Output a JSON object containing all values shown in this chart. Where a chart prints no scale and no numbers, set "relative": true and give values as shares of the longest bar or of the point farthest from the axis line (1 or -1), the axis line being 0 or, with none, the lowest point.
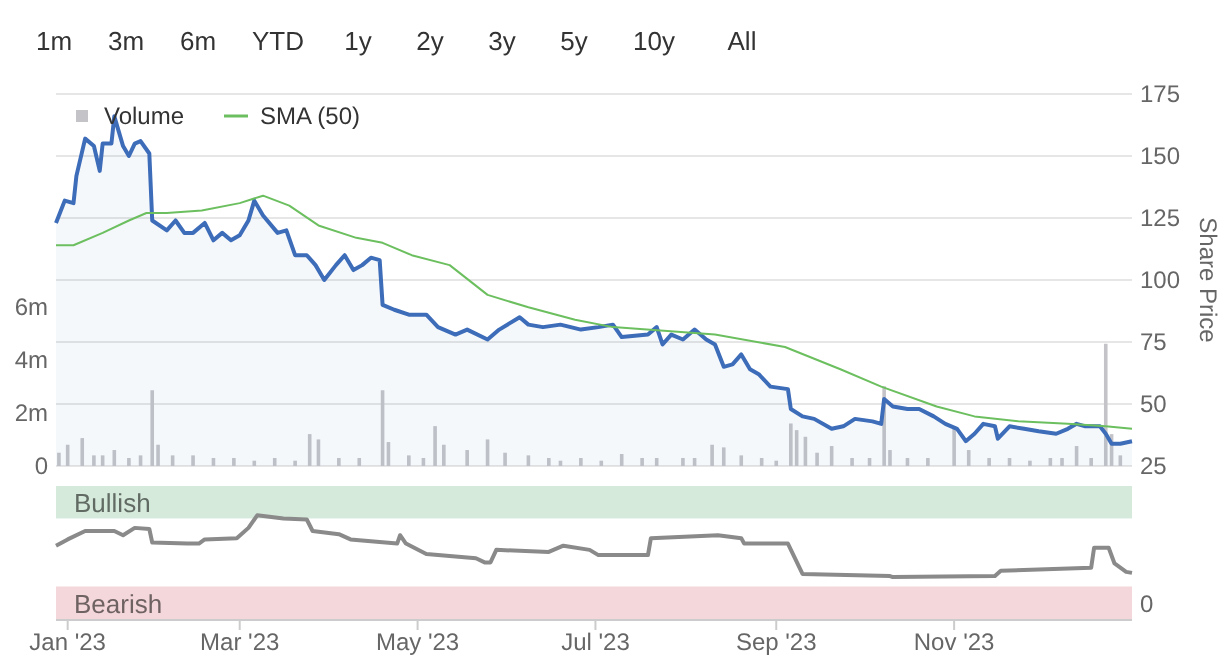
{
  "chart_data": [
    {
      "type": "other",
      "annotations": [
        "1m",
        "3m",
        "6m",
        "YTD",
        "1y",
        "2y",
        "3y",
        "5y",
        "10y",
        "All"
      ]
    },
    {
      "type": "line",
      "ylabel": "Share Price",
      "xlim": [
        "2022-12-28",
        "2024-01-01"
      ],
      "ylim": [
        25,
        175
      ],
      "yticks": [
        25,
        50,
        75,
        100,
        125,
        150,
        175
      ],
      "y2lim": [
        0,
        14000000
      ],
      "y2ticks": [
        {
          "value": 0,
          "label": "0"
        },
        {
          "value": 2000000,
          "label": "2m"
        },
        {
          "value": 4000000,
          "label": "4m"
        },
        {
          "value": 6000000,
          "label": "6m"
        }
      ],
      "grid": "y",
      "legend": "top left",
      "tick_labels": "y",
      "series": [
        {
          "name": "Volume",
          "type": "bar",
          "axis": "y2",
          "color": "#c4c4c8",
          "x": [
            "2022-12-29",
            "2023-01-01",
            "2023-01-06",
            "2023-01-10",
            "2023-01-13",
            "2023-01-17",
            "2023-01-22",
            "2023-01-26",
            "2023-01-30",
            "2023-02-01",
            "2023-02-06",
            "2023-02-13",
            "2023-02-20",
            "2023-02-27",
            "2023-03-06",
            "2023-03-13",
            "2023-03-20",
            "2023-03-25",
            "2023-03-28",
            "2023-04-04",
            "2023-04-11",
            "2023-04-19",
            "2023-04-21",
            "2023-04-28",
            "2023-05-03",
            "2023-05-07",
            "2023-05-10",
            "2023-05-18",
            "2023-05-25",
            "2023-05-31",
            "2023-06-08",
            "2023-06-15",
            "2023-06-19",
            "2023-06-26",
            "2023-07-03",
            "2023-07-10",
            "2023-07-17",
            "2023-07-22",
            "2023-07-31",
            "2023-08-04",
            "2023-08-10",
            "2023-08-14",
            "2023-08-20",
            "2023-08-27",
            "2023-09-01",
            "2023-09-06",
            "2023-09-08",
            "2023-09-11",
            "2023-09-15",
            "2023-09-20",
            "2023-09-27",
            "2023-10-03",
            "2023-10-08",
            "2023-10-10",
            "2023-10-16",
            "2023-10-23",
            "2023-11-01",
            "2023-11-06",
            "2023-11-13",
            "2023-11-20",
            "2023-11-27",
            "2023-12-04",
            "2023-12-08",
            "2023-12-13",
            "2023-12-18",
            "2023-12-23",
            "2023-12-25",
            "2023-12-28"
          ],
          "values": [
            500000,
            800000,
            1050000,
            400000,
            400000,
            600000,
            300000,
            400000,
            2850000,
            800000,
            400000,
            400000,
            300000,
            300000,
            200000,
            300000,
            200000,
            1200000,
            1000000,
            300000,
            300000,
            2850000,
            900000,
            400000,
            300000,
            1500000,
            800000,
            600000,
            1000000,
            500000,
            400000,
            300000,
            200000,
            300000,
            200000,
            450000,
            300000,
            300000,
            300000,
            300000,
            800000,
            700000,
            400000,
            300000,
            200000,
            1600000,
            1350000,
            1100000,
            500000,
            750000,
            300000,
            300000,
            3000000,
            600000,
            300000,
            300000,
            1500000,
            600000,
            300000,
            300000,
            200000,
            300000,
            300000,
            750000,
            300000,
            4600000,
            1200000,
            400000
          ]
        },
        {
          "type": "area",
          "color": "#3d6cb9",
          "x": [
            "2022-12-28",
            "2022-12-31",
            "2023-01-03",
            "2023-01-04",
            "2023-01-07",
            "2023-01-10",
            "2023-01-12",
            "2023-01-13",
            "2023-01-16",
            "2023-01-17",
            "2023-01-20",
            "2023-01-22",
            "2023-01-24",
            "2023-01-26",
            "2023-01-29",
            "2023-01-30",
            "2023-02-04",
            "2023-02-07",
            "2023-02-10",
            "2023-02-13",
            "2023-02-17",
            "2023-02-20",
            "2023-02-23",
            "2023-02-26",
            "2023-03-01",
            "2023-03-04",
            "2023-03-06",
            "2023-03-09",
            "2023-03-14",
            "2023-03-17",
            "2023-03-20",
            "2023-03-24",
            "2023-03-27",
            "2023-03-30",
            "2023-04-03",
            "2023-04-06",
            "2023-04-09",
            "2023-04-12",
            "2023-04-15",
            "2023-04-18",
            "2023-04-19",
            "2023-04-23",
            "2023-04-28",
            "2023-05-04",
            "2023-05-08",
            "2023-05-14",
            "2023-05-18",
            "2023-05-25",
            "2023-05-29",
            "2023-06-05",
            "2023-06-08",
            "2023-06-13",
            "2023-06-19",
            "2023-06-26",
            "2023-07-02",
            "2023-07-07",
            "2023-07-10",
            "2023-07-19",
            "2023-07-22",
            "2023-07-24",
            "2023-07-27",
            "2023-07-31",
            "2023-08-04",
            "2023-08-08",
            "2023-08-11",
            "2023-08-14",
            "2023-08-17",
            "2023-08-20",
            "2023-08-23",
            "2023-08-26",
            "2023-08-30",
            "2023-09-05",
            "2023-09-06",
            "2023-09-10",
            "2023-09-14",
            "2023-09-20",
            "2023-09-24",
            "2023-09-28",
            "2023-10-04",
            "2023-10-07",
            "2023-10-08",
            "2023-10-11",
            "2023-10-16",
            "2023-10-20",
            "2023-10-25",
            "2023-10-29",
            "2023-11-02",
            "2023-11-05",
            "2023-11-08",
            "2023-11-11",
            "2023-11-15",
            "2023-11-16",
            "2023-11-20",
            "2023-11-25",
            "2023-11-30",
            "2023-12-06",
            "2023-12-10",
            "2023-12-13",
            "2023-12-16",
            "2023-12-21",
            "2023-12-23",
            "2023-12-25",
            "2023-12-28",
            "2024-01-01"
          ],
          "values": [
            123,
            132,
            131,
            142,
            157,
            154,
            144,
            155,
            155,
            166,
            154,
            150,
            155,
            156,
            151,
            124,
            120,
            124,
            119,
            119,
            123,
            116,
            119,
            116,
            118,
            124,
            132,
            126,
            119,
            120,
            110,
            110,
            106,
            100,
            106,
            110,
            104,
            106,
            109,
            108,
            90,
            88,
            86,
            86,
            81,
            78,
            80,
            76,
            80,
            85,
            82,
            81,
            82,
            80,
            81,
            82,
            77,
            78,
            81,
            74,
            78,
            76,
            80,
            76,
            74,
            65,
            66,
            70,
            64,
            62,
            57,
            56,
            48,
            45,
            44,
            40,
            41,
            44,
            43,
            42,
            52,
            49,
            48,
            48,
            45,
            42,
            40,
            35,
            38,
            42,
            41,
            36,
            41,
            40,
            39,
            38,
            40,
            42,
            41,
            41,
            38,
            34,
            34,
            35
          ]
        },
        {
          "name": "SMA (50)",
          "type": "line",
          "color": "#6cbf5f",
          "x": [
            "2022-12-28",
            "2023-01-03",
            "2023-01-13",
            "2023-01-22",
            "2023-01-28",
            "2023-02-04",
            "2023-02-16",
            "2023-03-01",
            "2023-03-09",
            "2023-03-18",
            "2023-03-28",
            "2023-04-10",
            "2023-04-19",
            "2023-04-29",
            "2023-05-12",
            "2023-05-25",
            "2023-06-08",
            "2023-06-24",
            "2023-07-07",
            "2023-08-11",
            "2023-09-04",
            "2023-09-23",
            "2023-10-07",
            "2023-10-26",
            "2023-11-08",
            "2023-11-23",
            "2023-12-10",
            "2023-12-23",
            "2024-01-01"
          ],
          "values": [
            114,
            114,
            119,
            124,
            127,
            127,
            128,
            131,
            134,
            130,
            122,
            117,
            115,
            110,
            106,
            94,
            89,
            84,
            81,
            78,
            73,
            64,
            57,
            49,
            45,
            43,
            42,
            41,
            40
          ]
        }
      ]
    },
    {
      "type": "line",
      "relative": true,
      "xlim": [
        "2022-12-28",
        "2024-01-01"
      ],
      "xticks": [
        {
          "value": "2023-01-01",
          "label": "Jan '23"
        },
        {
          "value": "2023-03-01",
          "label": "Mar '23"
        },
        {
          "value": "2023-05-01",
          "label": "May '23"
        },
        {
          "value": "2023-07-01",
          "label": "Jul '23"
        },
        {
          "value": "2023-09-01",
          "label": "Sep '23"
        },
        {
          "value": "2023-11-01",
          "label": "Nov '23"
        }
      ],
      "tick_labels": "x",
      "annotations": [
        "0"
      ],
      "bands": [
        {
          "axis": "y",
          "from": 0.97,
          "to": 1.28,
          "label": "Bullish",
          "color": "#d5eadb"
        },
        {
          "axis": "y",
          "from": 0,
          "to": 0.32,
          "label": "Bearish",
          "color": "#f4d7da"
        }
      ],
      "series": [
        {
          "color": "#8a8a8a",
          "x": [
            "2022-12-28",
            "2023-01-01",
            "2023-01-07",
            "2023-01-17",
            "2023-01-20",
            "2023-01-24",
            "2023-01-29",
            "2023-01-30",
            "2023-02-11",
            "2023-02-15",
            "2023-02-17",
            "2023-02-28",
            "2023-03-04",
            "2023-03-07",
            "2023-03-16",
            "2023-03-24",
            "2023-03-26",
            "2023-04-04",
            "2023-04-08",
            "2023-04-24",
            "2023-04-25",
            "2023-04-27",
            "2023-05-04",
            "2023-05-21",
            "2023-05-24",
            "2023-05-26",
            "2023-05-28",
            "2023-06-15",
            "2023-06-20",
            "2023-06-29",
            "2023-07-02",
            "2023-07-19",
            "2023-07-20",
            "2023-08-12",
            "2023-08-20",
            "2023-08-21",
            "2023-09-05",
            "2023-09-10",
            "2023-10-10",
            "2023-10-11",
            "2023-11-15",
            "2023-11-17",
            "2023-12-18",
            "2023-12-19",
            "2023-12-24",
            "2023-12-26",
            "2023-12-30",
            "2024-01-01"
          ],
          "values": [
            0.71,
            0.77,
            0.85,
            0.85,
            0.81,
            0.88,
            0.87,
            0.74,
            0.73,
            0.73,
            0.77,
            0.78,
            0.88,
            1.0,
            0.97,
            0.96,
            0.85,
            0.82,
            0.77,
            0.73,
            0.81,
            0.73,
            0.63,
            0.59,
            0.55,
            0.55,
            0.67,
            0.65,
            0.71,
            0.67,
            0.62,
            0.62,
            0.78,
            0.81,
            0.78,
            0.73,
            0.73,
            0.44,
            0.42,
            0.41,
            0.42,
            0.47,
            0.5,
            0.69,
            0.69,
            0.54,
            0.46,
            0.45
          ]
        }
      ]
    }
  ]
}
